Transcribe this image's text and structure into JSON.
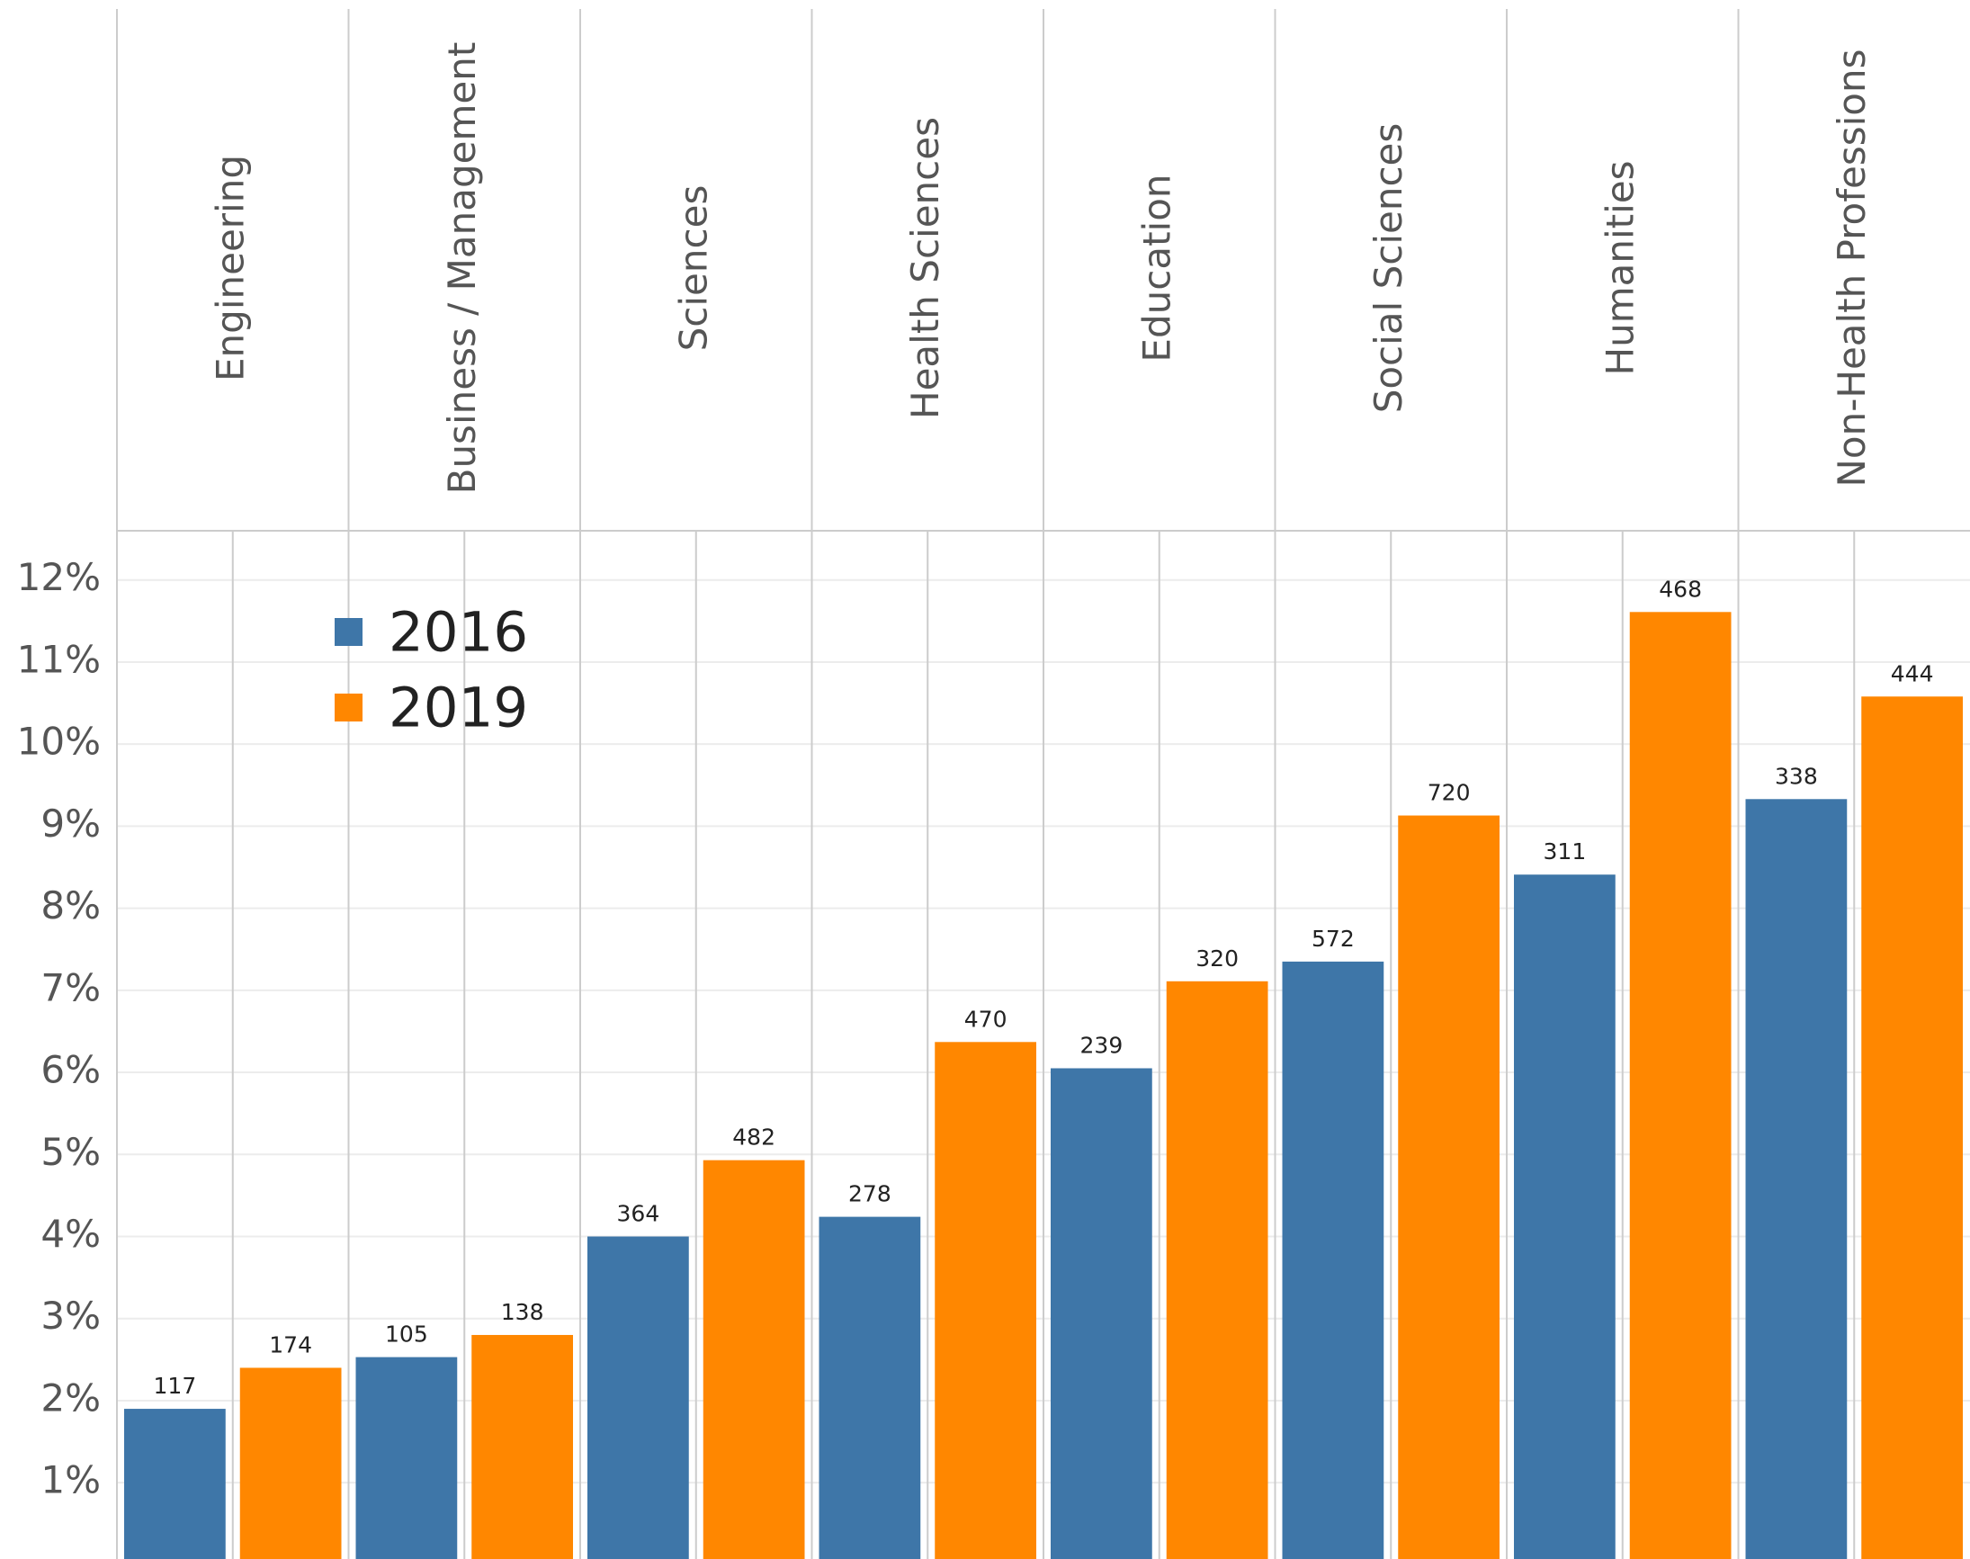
{
  "chart_data": {
    "type": "bar",
    "categories": [
      "Engineering",
      "Business / Management",
      "Sciences",
      "Health Sciences",
      "Education",
      "Social Sciences",
      "Humanities",
      "Non-Health Professions"
    ],
    "series": [
      {
        "name": "2016",
        "color": "#3e76a8",
        "values": [
          1.9,
          2.53,
          4.0,
          4.24,
          6.05,
          7.35,
          8.41,
          9.33
        ],
        "counts": [
          117,
          105,
          364,
          278,
          239,
          572,
          311,
          338
        ]
      },
      {
        "name": "2019",
        "color": "#ff8700",
        "values": [
          2.4,
          2.8,
          4.93,
          6.37,
          7.11,
          9.13,
          11.61,
          10.58
        ],
        "counts": [
          174,
          138,
          482,
          470,
          320,
          720,
          468,
          444
        ]
      }
    ],
    "ylim": [
      0.07,
      12.6
    ],
    "yticks": [
      {
        "value": 1,
        "label": "1%"
      },
      {
        "value": 2,
        "label": "2%"
      },
      {
        "value": 3,
        "label": "3%"
      },
      {
        "value": 4,
        "label": "4%"
      },
      {
        "value": 5,
        "label": "5%"
      },
      {
        "value": 6,
        "label": "6%"
      },
      {
        "value": 7,
        "label": "7%"
      },
      {
        "value": 8,
        "label": "8%"
      },
      {
        "value": 9,
        "label": "9%"
      },
      {
        "value": 10,
        "label": "10%"
      },
      {
        "value": 11,
        "label": "11%"
      },
      {
        "value": 12,
        "label": "12%"
      }
    ],
    "grid": true,
    "legend": "upper left"
  }
}
